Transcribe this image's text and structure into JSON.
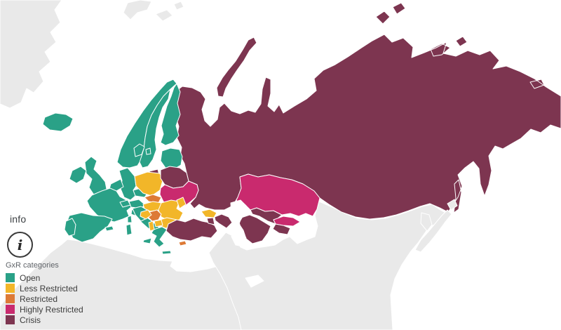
{
  "info_panel": {
    "label": "info",
    "icon_glyph": "i"
  },
  "legend": {
    "title": "GxR categories",
    "items": [
      {
        "label": "Open",
        "category": "open"
      },
      {
        "label": "Less Restricted",
        "category": "less_restricted"
      },
      {
        "label": "Restricted",
        "category": "restricted"
      },
      {
        "label": "Highly Restricted",
        "category": "highly_restricted"
      },
      {
        "label": "Crisis",
        "category": "crisis"
      }
    ]
  },
  "colors": {
    "open": "#2aa187",
    "less_restricted": "#f2b629",
    "restricted": "#dd7a36",
    "highly_restricted": "#c92a6e",
    "crisis": "#7d3550",
    "no_data": "#e9e9e9",
    "sea": "#ffffff",
    "border": "#ffffff"
  },
  "map": {
    "regions": [
      {
        "id": "greenland",
        "category": "no_data"
      },
      {
        "id": "svalbard",
        "category": "no_data"
      },
      {
        "id": "africa",
        "category": "no_data"
      },
      {
        "id": "middle-east-asia",
        "category": "no_data"
      },
      {
        "id": "japan",
        "category": "no_data"
      },
      {
        "id": "korea",
        "category": "no_data"
      },
      {
        "id": "russia",
        "category": "crisis"
      },
      {
        "id": "belarus",
        "category": "crisis"
      },
      {
        "id": "turkey",
        "category": "crisis"
      },
      {
        "id": "armenia",
        "category": "crisis"
      },
      {
        "id": "azerbaijan",
        "category": "crisis"
      },
      {
        "id": "turkmenistan",
        "category": "crisis"
      },
      {
        "id": "uzbekistan",
        "category": "crisis"
      },
      {
        "id": "tajikistan",
        "category": "crisis"
      },
      {
        "id": "ukraine",
        "category": "highly_restricted"
      },
      {
        "id": "kazakhstan",
        "category": "highly_restricted"
      },
      {
        "id": "kyrgyzstan",
        "category": "highly_restricted"
      },
      {
        "id": "poland",
        "category": "less_restricted"
      },
      {
        "id": "hungary",
        "category": "less_restricted"
      },
      {
        "id": "romania",
        "category": "less_restricted"
      },
      {
        "id": "moldova",
        "category": "less_restricted"
      },
      {
        "id": "bulgaria",
        "category": "less_restricted"
      },
      {
        "id": "bosnia",
        "category": "less_restricted"
      },
      {
        "id": "albania",
        "category": "less_restricted"
      },
      {
        "id": "north-macedonia",
        "category": "less_restricted"
      },
      {
        "id": "georgia",
        "category": "less_restricted"
      },
      {
        "id": "slovakia",
        "category": "restricted"
      },
      {
        "id": "serbia",
        "category": "restricted"
      },
      {
        "id": "cyprus",
        "category": "restricted"
      },
      {
        "id": "iceland",
        "category": "open"
      },
      {
        "id": "norway",
        "category": "open"
      },
      {
        "id": "sweden",
        "category": "open"
      },
      {
        "id": "finland",
        "category": "open"
      },
      {
        "id": "denmark",
        "category": "open"
      },
      {
        "id": "baltic-states",
        "category": "open"
      },
      {
        "id": "united-kingdom",
        "category": "open"
      },
      {
        "id": "ireland",
        "category": "open"
      },
      {
        "id": "germany",
        "category": "open"
      },
      {
        "id": "benelux",
        "category": "open"
      },
      {
        "id": "france",
        "category": "open"
      },
      {
        "id": "spain",
        "category": "open"
      },
      {
        "id": "portugal",
        "category": "open"
      },
      {
        "id": "switzerland",
        "category": "open"
      },
      {
        "id": "austria",
        "category": "open"
      },
      {
        "id": "czechia",
        "category": "open"
      },
      {
        "id": "croatia",
        "category": "open"
      },
      {
        "id": "italy",
        "category": "open"
      },
      {
        "id": "greece",
        "category": "open"
      }
    ]
  }
}
